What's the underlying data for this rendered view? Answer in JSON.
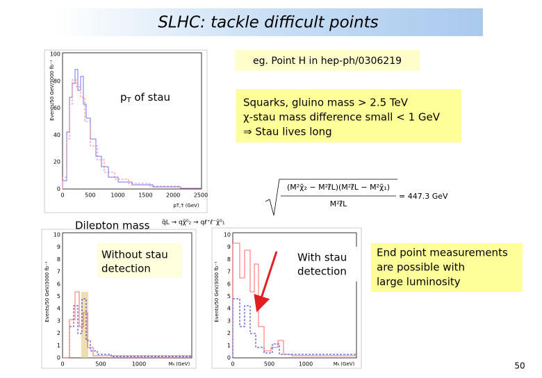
{
  "header": {
    "title": "SLHC: tackle difficult points"
  },
  "reference": "eg. Point H in hep-ph/0306219",
  "plot_pt": {
    "y_label": "Events/50 GeV/3000 fb⁻¹",
    "yticks": [
      "100",
      "80",
      "60",
      "40",
      "20",
      "0"
    ],
    "xticks": [
      "0",
      "500",
      "1000",
      "1500",
      "2000",
      "2500"
    ],
    "x_label": "pT,τ̃ (GeV)",
    "annotation": {
      "main": "p",
      "sub": "T",
      "rest": " of stau"
    }
  },
  "conditions": [
    "Squarks, gluino mass > 2.5 TeV",
    "χ-stau mass difference small < 1 GeV",
    "⇒ Stau lives long"
  ],
  "formula": {
    "numerator": "(M²χ̃₂ − M²ℓ̃L)(M²ℓ̃L − M²χ̃₁)",
    "denominator": "M²ℓ̃L",
    "result": "= 447.3 GeV"
  },
  "dilepton": {
    "label": "Dilepton mass",
    "decay": "q̃L → qχ̃⁰₂ → qℓ⁺ℓ⁻χ̃⁰₁"
  },
  "plot_without": {
    "y_label": "Events/50 GeV/3000 fb⁻¹",
    "yticks": [
      "10",
      "9",
      "8",
      "7",
      "6",
      "5",
      "4",
      "3",
      "2",
      "1",
      "0"
    ],
    "xticks": [
      "0",
      "500",
      "1000"
    ],
    "x_label": "Mₗₗ (GeV)",
    "note": [
      "Without stau",
      "detection"
    ]
  },
  "plot_with": {
    "y_label": "Events/50 GeV/3000 fb⁻¹",
    "yticks": [
      "10",
      "9",
      "8",
      "7",
      "6",
      "5",
      "4",
      "3",
      "2",
      "1",
      "0"
    ],
    "xticks": [
      "0",
      "500",
      "1000"
    ],
    "x_label": "Mₗₗ (GeV)",
    "note": [
      "With stau",
      "detection"
    ]
  },
  "conclusion": [
    "End point measurements",
    "are  possible with",
    "large luminosity"
  ],
  "page_number": "50"
}
